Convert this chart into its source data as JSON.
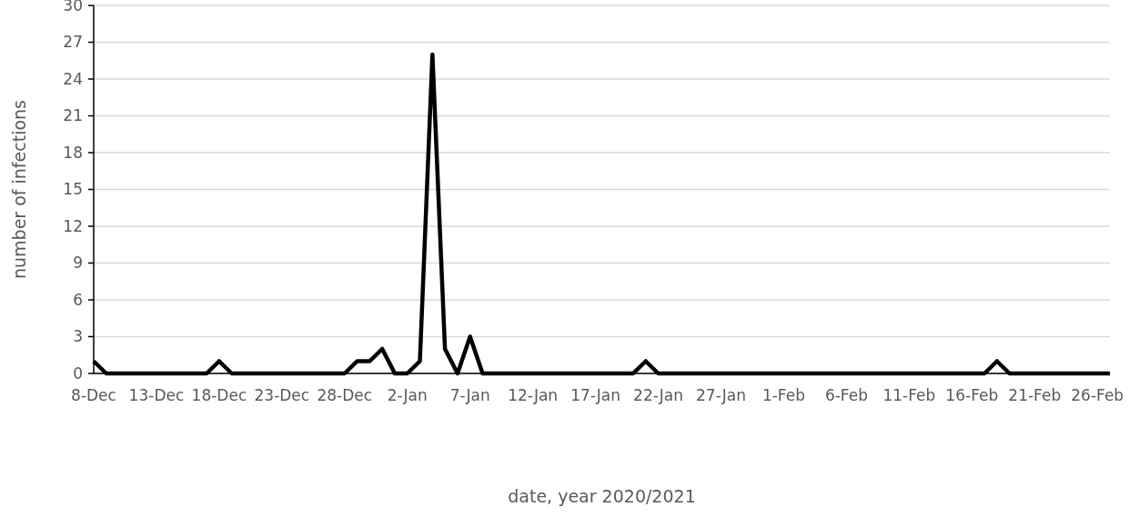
{
  "chart_data": {
    "type": "line",
    "xlabel": "date, year 2020/2021",
    "ylabel": "number of infections",
    "categories": [
      "8-Dec",
      null,
      null,
      null,
      null,
      "13-Dec",
      null,
      null,
      null,
      null,
      "18-Dec",
      null,
      null,
      null,
      null,
      "23-Dec",
      null,
      null,
      null,
      null,
      "28-Dec",
      null,
      null,
      null,
      null,
      "2-Jan",
      null,
      null,
      null,
      null,
      "7-Jan",
      null,
      null,
      null,
      null,
      "12-Jan",
      null,
      null,
      null,
      null,
      "17-Jan",
      null,
      null,
      null,
      null,
      "22-Jan",
      null,
      null,
      null,
      null,
      "27-Jan",
      null,
      null,
      null,
      null,
      "1-Feb",
      null,
      null,
      null,
      null,
      "6-Feb",
      null,
      null,
      null,
      null,
      "11-Feb",
      null,
      null,
      null,
      null,
      "16-Feb",
      null,
      null,
      null,
      null,
      "21-Feb",
      null,
      null,
      null,
      null,
      "26-Feb",
      null
    ],
    "values": [
      1,
      0,
      0,
      0,
      0,
      0,
      0,
      0,
      0,
      0,
      1,
      0,
      0,
      0,
      0,
      0,
      0,
      0,
      0,
      0,
      0,
      1,
      1,
      2,
      0,
      0,
      1,
      26,
      2,
      0,
      3,
      0,
      0,
      0,
      0,
      0,
      0,
      0,
      0,
      0,
      0,
      0,
      0,
      0,
      1,
      0,
      0,
      0,
      0,
      0,
      0,
      0,
      0,
      0,
      0,
      0,
      0,
      0,
      0,
      0,
      0,
      0,
      0,
      0,
      0,
      0,
      0,
      0,
      0,
      0,
      0,
      0,
      1,
      0,
      0,
      0,
      0,
      0,
      0,
      0,
      0,
      0
    ],
    "color": "#000000",
    "ylim": [
      0,
      30
    ],
    "yticks": [
      0,
      3,
      6,
      9,
      12,
      15,
      18,
      21,
      24,
      27,
      30
    ],
    "grid": "y"
  }
}
